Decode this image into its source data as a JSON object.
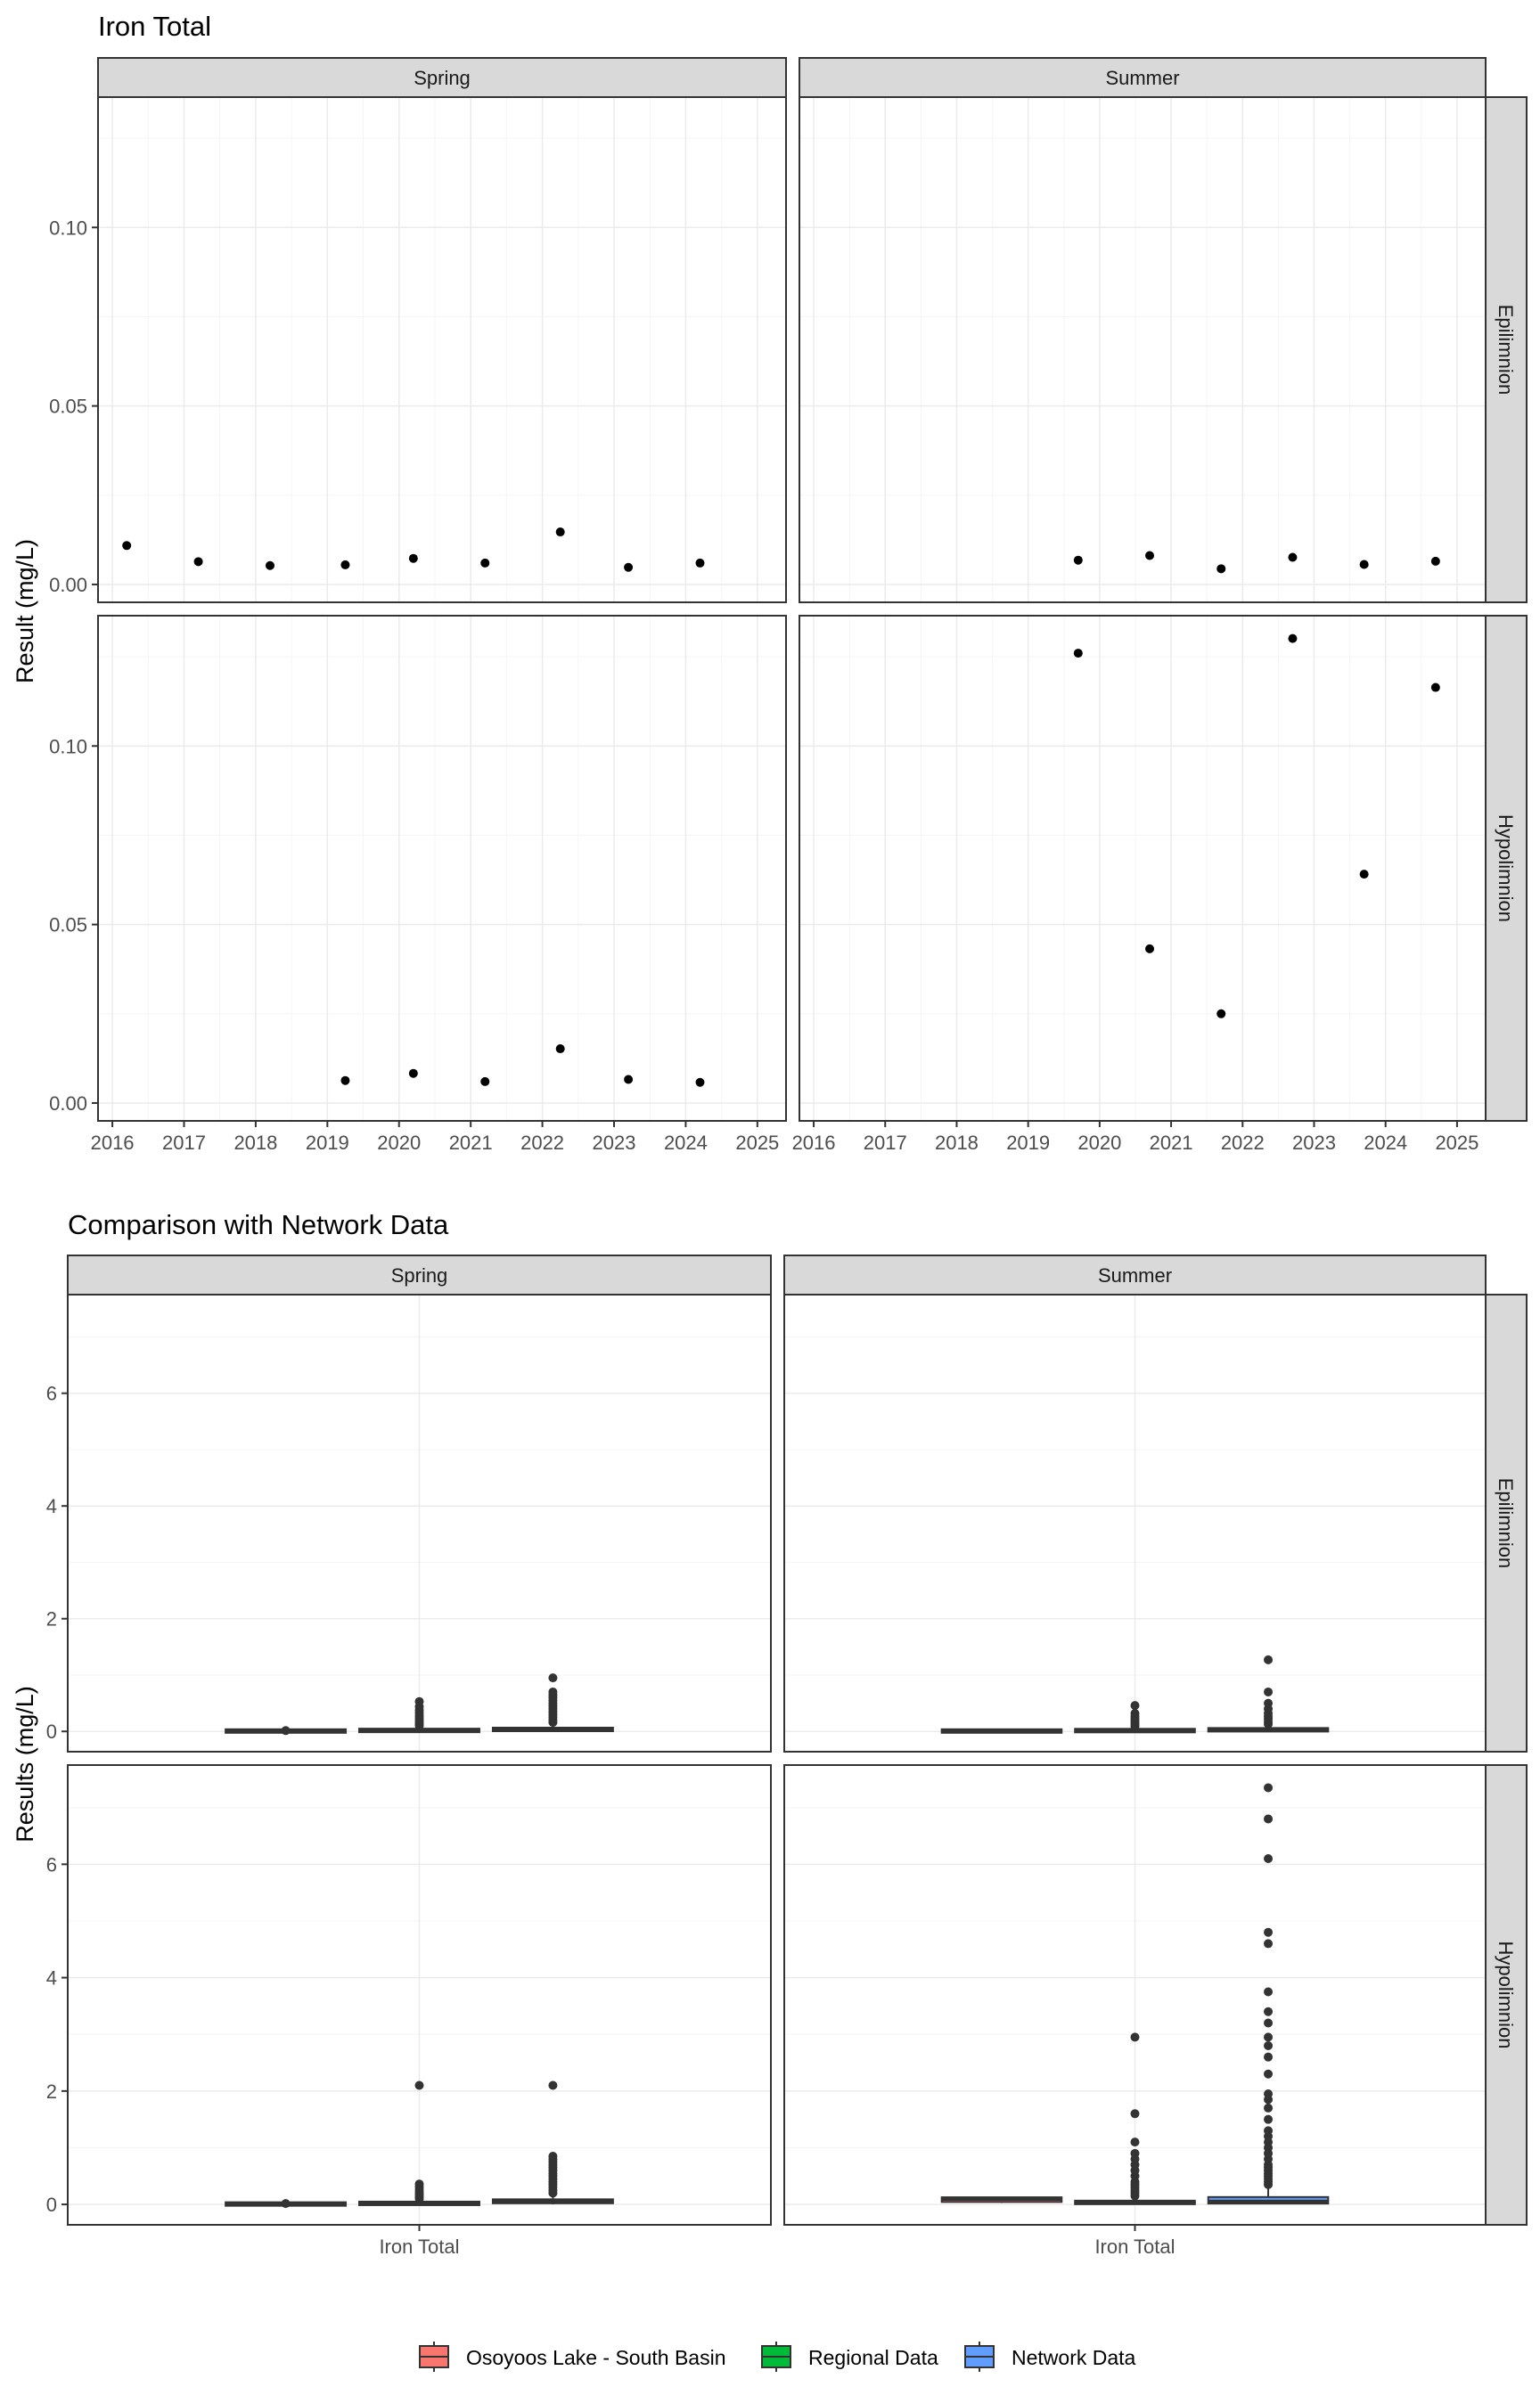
{
  "colors": {
    "strip_fill": "#d9d9d9",
    "panel_border": "#333333",
    "grid_major": "#ebebeb",
    "grid_minor": "#f5f5f5",
    "point": "#000000",
    "box_outline": "#333333",
    "osoyoos": "#f8766d",
    "regional": "#00ba38",
    "network": "#619cff"
  },
  "chart_data": [
    {
      "type": "scatter",
      "title": "Iron Total",
      "ylabel": "Result (mg/L)",
      "xlabel": "",
      "x_range": [
        2015.8,
        2025.4
      ],
      "x_ticks": [
        "2016",
        "2017",
        "2018",
        "2019",
        "2020",
        "2021",
        "2022",
        "2023",
        "2024",
        "2025"
      ],
      "ylim": [
        -0.005,
        0.1365
      ],
      "y_ticks": [
        "0.00",
        "0.05",
        "0.10"
      ],
      "grid": true,
      "col_facets": [
        "Spring",
        "Summer"
      ],
      "row_facets": [
        "Epilimnion",
        "Hypolimnion"
      ],
      "panels": [
        {
          "col": "Spring",
          "row": "Epilimnion",
          "x": [
            2016.2,
            2017.2,
            2018.2,
            2019.25,
            2020.2,
            2021.2,
            2022.25,
            2023.2,
            2024.2
          ],
          "y": [
            0.0109,
            0.0064,
            0.0053,
            0.0055,
            0.0073,
            0.006,
            0.0147,
            0.0048,
            0.006
          ]
        },
        {
          "col": "Summer",
          "row": "Epilimnion",
          "x": [
            2019.7,
            2020.7,
            2021.7,
            2022.7,
            2023.7,
            2024.7
          ],
          "y": [
            0.0068,
            0.0081,
            0.0044,
            0.0076,
            0.0056,
            0.0065
          ]
        },
        {
          "col": "Spring",
          "row": "Hypolimnion",
          "x": [
            2019.25,
            2020.2,
            2021.2,
            2022.25,
            2023.2,
            2024.2
          ],
          "y": [
            0.0063,
            0.0083,
            0.006,
            0.0152,
            0.0066,
            0.0058
          ]
        },
        {
          "col": "Summer",
          "row": "Hypolimnion",
          "x": [
            2019.7,
            2020.7,
            2021.7,
            2022.7,
            2023.7,
            2024.7
          ],
          "y": [
            0.126,
            0.0432,
            0.025,
            0.1301,
            0.0641,
            0.1164
          ]
        }
      ]
    },
    {
      "type": "box",
      "title": "Comparison with Network Data",
      "ylabel": "Results (mg/L)",
      "xlabel": "",
      "category": "Iron Total",
      "ylim": [
        -0.36,
        7.75
      ],
      "y_ticks": [
        "0",
        "2",
        "4",
        "6"
      ],
      "grid": true,
      "col_facets": [
        "Spring",
        "Summer"
      ],
      "row_facets": [
        "Epilimnion",
        "Hypolimnion"
      ],
      "groups": [
        "Osoyoos Lake - South Basin",
        "Regional Data",
        "Network Data"
      ],
      "legend": {
        "position": "bottom",
        "items": [
          "Osoyoos Lake - South Basin",
          "Regional Data",
          "Network Data"
        ]
      },
      "panels": [
        {
          "col": "Spring",
          "row": "Epilimnion",
          "boxes": [
            {
              "group": "Osoyoos Lake - South Basin",
              "q1": 0.005,
              "median": 0.006,
              "q3": 0.008,
              "whisker_low": 0.004,
              "whisker_high": 0.011,
              "outliers": [
                0.015
              ]
            },
            {
              "group": "Regional Data",
              "q1": 0.005,
              "median": 0.012,
              "q3": 0.03,
              "whisker_low": 0.001,
              "whisker_high": 0.07,
              "outliers": [
                0.1,
                0.13,
                0.16,
                0.2,
                0.24,
                0.28,
                0.33,
                0.38,
                0.44,
                0.53
              ]
            },
            {
              "group": "Network Data",
              "q1": 0.01,
              "median": 0.03,
              "q3": 0.06,
              "whisker_low": 0.001,
              "whisker_high": 0.13,
              "outliers": [
                0.16,
                0.2,
                0.25,
                0.3,
                0.35,
                0.4,
                0.45,
                0.5,
                0.55,
                0.6,
                0.65,
                0.7,
                0.95
              ]
            }
          ]
        },
        {
          "col": "Summer",
          "row": "Epilimnion",
          "boxes": [
            {
              "group": "Osoyoos Lake - South Basin",
              "q1": 0.005,
              "median": 0.006,
              "q3": 0.008,
              "whisker_low": 0.004,
              "whisker_high": 0.009,
              "outliers": []
            },
            {
              "group": "Regional Data",
              "q1": 0.004,
              "median": 0.01,
              "q3": 0.025,
              "whisker_low": 0.001,
              "whisker_high": 0.06,
              "outliers": [
                0.09,
                0.12,
                0.15,
                0.19,
                0.23,
                0.27,
                0.32,
                0.46
              ]
            },
            {
              "group": "Network Data",
              "q1": 0.008,
              "median": 0.02,
              "q3": 0.05,
              "whisker_low": 0.001,
              "whisker_high": 0.1,
              "outliers": [
                0.13,
                0.17,
                0.22,
                0.27,
                0.32,
                0.4,
                0.5,
                0.7,
                1.27
              ]
            }
          ]
        },
        {
          "col": "Spring",
          "row": "Hypolimnion",
          "boxes": [
            {
              "group": "Osoyoos Lake - South Basin",
              "q1": 0.006,
              "median": 0.006,
              "q3": 0.008,
              "whisker_low": 0.005,
              "whisker_high": 0.01,
              "outliers": [
                0.015
              ]
            },
            {
              "group": "Regional Data",
              "q1": 0.006,
              "median": 0.013,
              "q3": 0.03,
              "whisker_low": 0.001,
              "whisker_high": 0.07,
              "outliers": [
                0.1,
                0.13,
                0.17,
                0.21,
                0.26,
                0.31,
                0.36,
                2.1
              ]
            },
            {
              "group": "Network Data",
              "q1": 0.02,
              "median": 0.05,
              "q3": 0.09,
              "whisker_low": 0.001,
              "whisker_high": 0.16,
              "outliers": [
                0.2,
                0.25,
                0.3,
                0.35,
                0.4,
                0.45,
                0.5,
                0.55,
                0.6,
                0.65,
                0.7,
                0.75,
                0.8,
                0.85,
                2.1
              ]
            }
          ]
        },
        {
          "col": "Summer",
          "row": "Hypolimnion",
          "boxes": [
            {
              "group": "Osoyoos Lake - South Basin",
              "q1": 0.043,
              "median": 0.095,
              "q3": 0.126,
              "whisker_low": 0.025,
              "whisker_high": 0.13,
              "outliers": []
            },
            {
              "group": "Regional Data",
              "q1": 0.01,
              "median": 0.025,
              "q3": 0.06,
              "whisker_low": 0.001,
              "whisker_high": 0.12,
              "outliers": [
                0.15,
                0.2,
                0.25,
                0.3,
                0.35,
                0.4,
                0.5,
                0.6,
                0.7,
                0.8,
                0.9,
                1.1,
                1.6,
                2.95
              ]
            },
            {
              "group": "Network Data",
              "q1": 0.015,
              "median": 0.05,
              "q3": 0.13,
              "whisker_low": 0.001,
              "whisker_high": 0.3,
              "outliers": [
                0.35,
                0.4,
                0.45,
                0.5,
                0.55,
                0.6,
                0.65,
                0.7,
                0.8,
                0.9,
                1.0,
                1.1,
                1.2,
                1.3,
                1.5,
                1.7,
                1.85,
                1.95,
                2.3,
                2.6,
                2.8,
                2.95,
                3.2,
                3.4,
                3.75,
                4.6,
                4.8,
                6.1,
                6.8,
                7.35
              ]
            }
          ]
        }
      ]
    }
  ]
}
